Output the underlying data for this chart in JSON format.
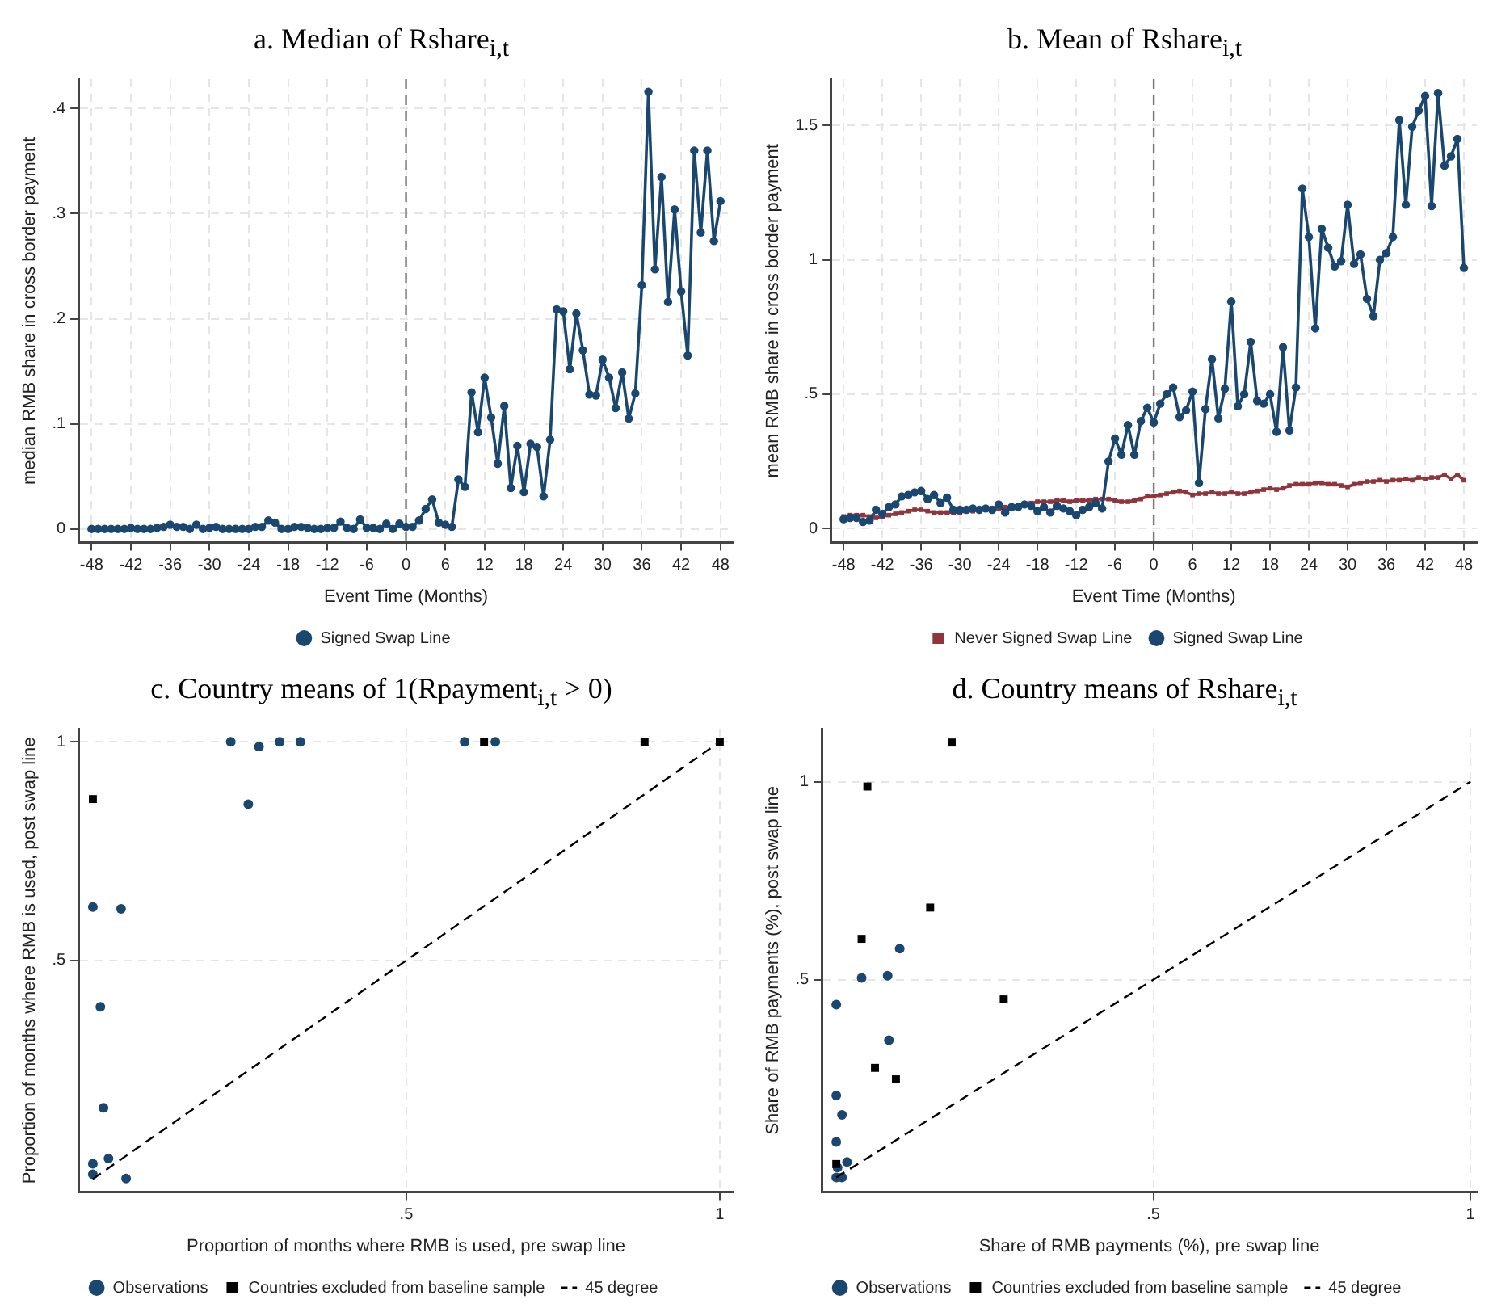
{
  "chart_data": [
    {
      "type": "line",
      "title": "a. Median of Rshare$_{i,t}$",
      "xlabel": "Event Time (Months)",
      "ylabel": "median RMB share in cross border payment",
      "xlim": [
        -50,
        50
      ],
      "ylim": [
        -0.013,
        0.428
      ],
      "xticks": [
        -48,
        -42,
        -36,
        -30,
        -24,
        -18,
        -12,
        -6,
        0,
        6,
        12,
        18,
        24,
        30,
        36,
        42,
        48
      ],
      "yticks": [
        0,
        {
          "value": 0.1,
          "label": ".1"
        },
        {
          "value": 0.2,
          "label": ".2"
        },
        {
          "value": 0.3,
          "label": ".3"
        },
        {
          "value": 0.4,
          "label": ".4"
        }
      ],
      "grid": true,
      "legend": "bottom",
      "ref_lines": [
        {
          "axis": "x",
          "value": 0,
          "color": "#777777",
          "line_style": "dashed"
        }
      ],
      "x": [
        -48,
        -47,
        -46,
        -45,
        -44,
        -43,
        -42,
        -41,
        -40,
        -39,
        -38,
        -37,
        -36,
        -35,
        -34,
        -33,
        -32,
        -31,
        -30,
        -29,
        -28,
        -27,
        -26,
        -25,
        -24,
        -23,
        -22,
        -21,
        -20,
        -19,
        -18,
        -17,
        -16,
        -15,
        -14,
        -13,
        -12,
        -11,
        -10,
        -9,
        -8,
        -7,
        -6,
        -5,
        -4,
        -3,
        -2,
        -1,
        0,
        1,
        2,
        3,
        4,
        5,
        6,
        7,
        8,
        9,
        10,
        11,
        12,
        13,
        14,
        15,
        16,
        17,
        18,
        19,
        20,
        21,
        22,
        23,
        24,
        25,
        26,
        27,
        28,
        29,
        30,
        31,
        32,
        33,
        34,
        35,
        36,
        37,
        38,
        39,
        40,
        41,
        42,
        43,
        44,
        45,
        46,
        47,
        48
      ],
      "series": [
        {
          "name": "Signed Swap Line",
          "color": "#1a476f",
          "marker": "circle",
          "values": [
            0,
            0,
            0,
            0,
            0,
            0,
            0.001,
            0,
            0,
            0,
            0.001,
            0.002,
            0.004,
            0.002,
            0.002,
            0,
            0.004,
            0,
            0.001,
            0.002,
            0,
            0,
            0,
            0,
            0,
            0.002,
            0.002,
            0.008,
            0.006,
            0,
            0,
            0.002,
            0.002,
            0.001,
            0,
            0,
            0.001,
            0.001,
            0.007,
            0.001,
            0,
            0.009,
            0.001,
            0.001,
            0,
            0.005,
            0,
            0.005,
            0.002,
            0.002,
            0.008,
            0.019,
            0.028,
            0.006,
            0.004,
            0.002,
            0.047,
            0.04,
            0.13,
            0.092,
            0.144,
            0.106,
            0.062,
            0.117,
            0.039,
            0.079,
            0.035,
            0.081,
            0.078,
            0.031,
            0.085,
            0.209,
            0.207,
            0.152,
            0.205,
            0.17,
            0.128,
            0.127,
            0.161,
            0.144,
            0.115,
            0.149,
            0.105,
            0.129,
            0.232,
            0.416,
            0.247,
            0.335,
            0.216,
            0.304,
            0.226,
            0.165,
            0.36,
            0.282,
            0.36,
            0.274,
            0.312
          ]
        }
      ]
    },
    {
      "type": "line",
      "title": "b. Mean of Rshare$_{i,t}$",
      "xlabel": "Event Time (Months)",
      "ylabel": "mean RMB share in cross border payment",
      "xlim": [
        -50,
        50
      ],
      "ylim": [
        -0.052,
        1.672
      ],
      "xticks": [
        -48,
        -42,
        -36,
        -30,
        -24,
        -18,
        -12,
        -6,
        0,
        6,
        12,
        18,
        24,
        30,
        36,
        42,
        48
      ],
      "yticks": [
        0,
        {
          "value": 0.5,
          "label": ".5"
        },
        1,
        1.5
      ],
      "grid": true,
      "legend": "bottom",
      "ref_lines": [
        {
          "axis": "x",
          "value": 0,
          "color": "#777777",
          "line_style": "dashed"
        }
      ],
      "x": [
        -48,
        -47,
        -46,
        -45,
        -44,
        -43,
        -42,
        -41,
        -40,
        -39,
        -38,
        -37,
        -36,
        -35,
        -34,
        -33,
        -32,
        -31,
        -30,
        -29,
        -28,
        -27,
        -26,
        -25,
        -24,
        -23,
        -22,
        -21,
        -20,
        -19,
        -18,
        -17,
        -16,
        -15,
        -14,
        -13,
        -12,
        -11,
        -10,
        -9,
        -8,
        -7,
        -6,
        -5,
        -4,
        -3,
        -2,
        -1,
        0,
        1,
        2,
        3,
        4,
        5,
        6,
        7,
        8,
        9,
        10,
        11,
        12,
        13,
        14,
        15,
        16,
        17,
        18,
        19,
        20,
        21,
        22,
        23,
        24,
        25,
        26,
        27,
        28,
        29,
        30,
        31,
        32,
        33,
        34,
        35,
        36,
        37,
        38,
        39,
        40,
        41,
        42,
        43,
        44,
        45,
        46,
        47,
        48
      ],
      "series": [
        {
          "name": "Never Signed Swap Line",
          "color": "#90353b",
          "marker": "square",
          "values": [
            0.045,
            0.05,
            0.05,
            0.05,
            0.045,
            0.04,
            0.045,
            0.05,
            0.055,
            0.06,
            0.065,
            0.07,
            0.07,
            0.065,
            0.06,
            0.06,
            0.06,
            0.06,
            0.06,
            0.065,
            0.065,
            0.07,
            0.07,
            0.075,
            0.075,
            0.08,
            0.08,
            0.085,
            0.09,
            0.095,
            0.1,
            0.1,
            0.1,
            0.105,
            0.105,
            0.1,
            0.105,
            0.105,
            0.105,
            0.11,
            0.11,
            0.11,
            0.105,
            0.1,
            0.1,
            0.105,
            0.11,
            0.12,
            0.12,
            0.125,
            0.13,
            0.135,
            0.14,
            0.135,
            0.125,
            0.13,
            0.13,
            0.135,
            0.13,
            0.13,
            0.135,
            0.13,
            0.13,
            0.135,
            0.14,
            0.145,
            0.15,
            0.145,
            0.15,
            0.16,
            0.165,
            0.165,
            0.165,
            0.17,
            0.17,
            0.165,
            0.165,
            0.16,
            0.155,
            0.165,
            0.17,
            0.175,
            0.175,
            0.18,
            0.175,
            0.18,
            0.18,
            0.185,
            0.18,
            0.19,
            0.185,
            0.19,
            0.19,
            0.2,
            0.185,
            0.2,
            0.18
          ]
        },
        {
          "name": "Signed Swap Line",
          "color": "#1a476f",
          "marker": "circle",
          "values": [
            0.035,
            0.04,
            0.04,
            0.025,
            0.03,
            0.07,
            0.055,
            0.08,
            0.09,
            0.12,
            0.125,
            0.135,
            0.14,
            0.11,
            0.125,
            0.095,
            0.115,
            0.07,
            0.07,
            0.07,
            0.075,
            0.07,
            0.075,
            0.07,
            0.09,
            0.06,
            0.08,
            0.08,
            0.09,
            0.085,
            0.065,
            0.08,
            0.06,
            0.085,
            0.075,
            0.065,
            0.05,
            0.07,
            0.08,
            0.095,
            0.075,
            0.25,
            0.335,
            0.275,
            0.385,
            0.275,
            0.4,
            0.45,
            0.395,
            0.465,
            0.5,
            0.525,
            0.415,
            0.44,
            0.51,
            0.17,
            0.445,
            0.63,
            0.41,
            0.52,
            0.845,
            0.455,
            0.5,
            0.695,
            0.475,
            0.465,
            0.5,
            0.36,
            0.675,
            0.365,
            0.525,
            1.265,
            1.085,
            0.745,
            1.115,
            1.045,
            0.975,
            0.995,
            1.205,
            0.985,
            1.02,
            0.855,
            0.79,
            1.0,
            1.025,
            1.085,
            1.52,
            1.205,
            1.495,
            1.555,
            1.61,
            1.2,
            1.62,
            1.35,
            1.385,
            1.45,
            0.97
          ]
        }
      ]
    },
    {
      "type": "scatter",
      "title": "c. Country means of 1(Rpayment$_{i,t}$ > 0)",
      "xlabel": "Proportion of months where RMB is used, pre swap line",
      "ylabel": "Proportion of months where RMB is used, post swap line",
      "xlim": [
        -0.023,
        1.022
      ],
      "ylim": [
        -0.03,
        1.03
      ],
      "xticks": [
        {
          "value": 0.5,
          "label": ".5"
        },
        1
      ],
      "yticks": [
        {
          "value": 0.5,
          "label": ".5"
        },
        1
      ],
      "grid": true,
      "legend": "bottom",
      "series": [
        {
          "name": "Observations",
          "color": "#1a476f",
          "marker": "circle",
          "x": [
            0,
            0.045,
            0.012,
            0.017,
            0,
            0,
            0.025,
            0.053,
            0.22,
            0.265,
            0.248,
            0.298,
            0.331,
            0.593,
            0.642
          ],
          "values": [
            0.622,
            0.618,
            0.394,
            0.163,
            0.035,
            0.011,
            0.047,
            0.001,
            1,
            0.989,
            0.857,
            1,
            1,
            1,
            1
          ]
        },
        {
          "name": "Countries excluded from baseline sample",
          "color": "#000000",
          "marker": "square",
          "x": [
            0,
            0.624,
            0.88,
            1
          ],
          "values": [
            0.869,
            1,
            1,
            1
          ]
        },
        {
          "name": "45 degree",
          "color": "#000000",
          "type": "line",
          "marker": "none",
          "line_style": "dashed",
          "x": [
            0,
            1
          ],
          "values": [
            0,
            1
          ]
        }
      ]
    },
    {
      "type": "scatter",
      "title": "d. Country means of Rshare$_{i,t}$",
      "xlabel": "Share of RMB payments (%), pre swap line",
      "ylabel": "Share of RMB payments (%), post swap line",
      "xlim": [
        -0.023,
        1.01
      ],
      "ylim": [
        -0.037,
        1.134
      ],
      "xticks": [
        {
          "value": 0.5,
          "label": ".5"
        },
        1
      ],
      "yticks": [
        {
          "value": 0.5,
          "label": ".5"
        },
        1
      ],
      "grid": true,
      "legend": "bottom",
      "series": [
        {
          "name": "Observations",
          "color": "#1a476f",
          "marker": "circle",
          "x": [
            0,
            0.04,
            0.081,
            0.1,
            0.083,
            0,
            0.009,
            0,
            0.017,
            0.002,
            0,
            0.009
          ],
          "values": [
            0.437,
            0.504,
            0.51,
            0.578,
            0.347,
            0.207,
            0.158,
            0.09,
            0.039,
            0.025,
            0,
            0
          ]
        },
        {
          "name": "Countries excluded from baseline sample",
          "color": "#000000",
          "marker": "square",
          "x": [
            0.182,
            0.049,
            0.148,
            0.04,
            0.264,
            0.061,
            0.094,
            0
          ],
          "values": [
            1.099,
            0.988,
            0.682,
            0.603,
            0.45,
            0.277,
            0.248,
            0.034
          ]
        },
        {
          "name": "45 degree",
          "color": "#000000",
          "type": "line",
          "marker": "none",
          "line_style": "dashed",
          "x": [
            0,
            1
          ],
          "values": [
            0,
            1
          ]
        }
      ]
    }
  ]
}
